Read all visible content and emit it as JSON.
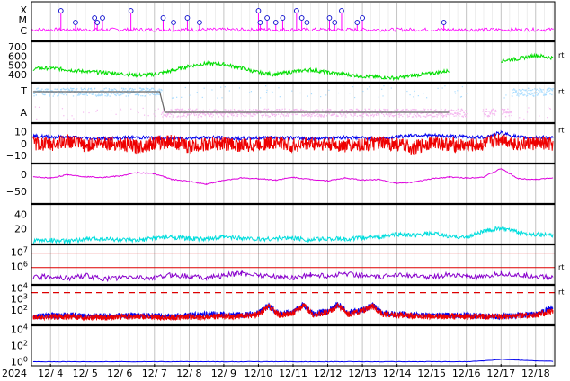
{
  "chart_data": {
    "type": "line",
    "x_axis": {
      "year_label": "2024",
      "ticks": [
        "12/ 4",
        "12/ 5",
        "12/ 6",
        "12/ 7",
        "12/ 8",
        "12/ 9",
        "12/10",
        "12/11",
        "12/12",
        "12/13",
        "12/14",
        "12/15",
        "12/16",
        "12/17",
        "12/18"
      ],
      "xlim": [
        3.45,
        18.55
      ]
    },
    "panels": [
      {
        "id": "xray-flares",
        "type": "scatter",
        "y_tick_labels": [
          "X",
          "M",
          "C"
        ],
        "colors": {
          "trace": "#ff00ff",
          "marker": "#0000cc"
        },
        "flare_days": [
          4.3,
          4.72,
          5.27,
          5.35,
          5.5,
          6.32,
          7.25,
          7.55,
          7.95,
          8.3,
          10.0,
          10.05,
          10.25,
          10.5,
          10.7,
          11.1,
          11.25,
          11.4,
          12.05,
          12.2,
          12.4,
          12.85,
          13.0,
          15.35
        ]
      },
      {
        "id": "solar-wind-speed",
        "type": "line",
        "y_tick_labels": [
          "700",
          "600",
          "500",
          "400"
        ],
        "ylim": [
          320,
          760
        ],
        "right_label": "rt",
        "colors": {
          "line": "#00dd00"
        },
        "x": [
          3.5,
          4.0,
          4.5,
          5.0,
          5.5,
          6.0,
          6.5,
          7.0,
          7.5,
          8.0,
          8.5,
          9.0,
          9.5,
          10.0,
          10.5,
          11.0,
          11.5,
          12.0,
          12.5,
          13.0,
          13.5,
          14.0,
          14.5,
          15.0,
          15.5,
          16.0,
          16.5,
          17.0,
          17.5,
          18.0,
          18.5
        ],
        "y": [
          470,
          480,
          460,
          440,
          430,
          420,
          400,
          410,
          450,
          500,
          530,
          520,
          480,
          430,
          410,
          440,
          460,
          430,
          410,
          390,
          380,
          370,
          400,
          420,
          450,
          null,
          null,
          560,
          580,
          620,
          590
        ]
      },
      {
        "id": "imf-direction",
        "type": "scatter",
        "y_tick_labels": [
          "T",
          "A"
        ],
        "right_label": "rt",
        "colors": {
          "toward": "#a8dcff",
          "away": "#f5b8f0",
          "boundary": "#666666"
        }
      },
      {
        "id": "bz-bt",
        "type": "line",
        "y_tick_labels": [
          "10",
          "0",
          "−10"
        ],
        "ylim": [
          -16,
          18
        ],
        "right_label": "rt",
        "series": [
          {
            "color": "#0000ee",
            "x": [
              3.5,
              4.5,
              5.5,
              6.5,
              7.5,
              8.5,
              9.5,
              10.5,
              11.5,
              12.5,
              13.5,
              14.5,
              15.5,
              16.5,
              17.0,
              17.5,
              18.0,
              18.5
            ],
            "y": [
              7,
              6,
              5,
              6,
              5,
              6,
              5,
              6,
              5,
              6,
              5,
              8,
              7,
              6,
              10,
              6,
              6,
              6
            ]
          },
          {
            "color": "#ee0000",
            "x": [
              3.5,
              4.0,
              4.5,
              5.0,
              5.5,
              6.0,
              6.5,
              7.0,
              7.5,
              8.0,
              8.5,
              9.0,
              9.5,
              10.0,
              10.5,
              11.0,
              11.5,
              12.0,
              12.5,
              13.0,
              13.5,
              14.0,
              14.5,
              15.0,
              15.5,
              16.0,
              16.5,
              17.0,
              17.5,
              18.0,
              18.5
            ],
            "y": [
              1,
              0,
              3,
              -1,
              2,
              0,
              -2,
              1,
              3,
              -2,
              0,
              1,
              -1,
              0,
              2,
              -1,
              1,
              0,
              -1,
              0,
              1,
              0,
              -3,
              2,
              0,
              -1,
              0,
              5,
              0,
              1,
              0
            ]
          }
        ]
      },
      {
        "id": "magnetometer-h",
        "type": "line",
        "y_tick_labels": [
          "0",
          "−50"
        ],
        "ylim": [
          -85,
          35
        ],
        "colors": {
          "line": "#dd00dd"
        },
        "x": [
          3.5,
          4.0,
          4.5,
          5.0,
          5.5,
          6.0,
          6.5,
          7.0,
          7.5,
          8.0,
          8.5,
          9.0,
          9.5,
          10.0,
          10.5,
          11.0,
          11.5,
          12.0,
          12.5,
          13.0,
          13.5,
          14.0,
          14.5,
          15.0,
          15.5,
          16.0,
          16.5,
          17.0,
          17.5,
          18.0,
          18.5
        ],
        "y": [
          -5,
          -8,
          2,
          -4,
          -6,
          -2,
          8,
          5,
          -12,
          -18,
          -26,
          -15,
          -8,
          -10,
          -14,
          -6,
          -12,
          -16,
          -8,
          -14,
          -12,
          -24,
          -20,
          -10,
          -5,
          -8,
          -5,
          20,
          -10,
          -12,
          -8
        ]
      },
      {
        "id": "electron-flux",
        "type": "line",
        "y_tick_labels": [
          "40",
          "20"
        ],
        "ylim": [
          0,
          55
        ],
        "colors": {
          "line": "#00dddd"
        },
        "x": [
          3.5,
          4.0,
          4.5,
          5.0,
          5.5,
          6.0,
          6.5,
          7.0,
          7.5,
          8.0,
          8.5,
          9.0,
          9.5,
          10.0,
          10.5,
          11.0,
          11.5,
          12.0,
          12.5,
          13.0,
          13.5,
          14.0,
          14.5,
          15.0,
          15.5,
          16.0,
          16.5,
          17.0,
          17.5,
          18.0,
          18.5
        ],
        "y": [
          5,
          6,
          4,
          7,
          8,
          6,
          5,
          9,
          10,
          8,
          7,
          10,
          9,
          7,
          8,
          9,
          6,
          8,
          7,
          9,
          10,
          14,
          12,
          15,
          11,
          10,
          18,
          22,
          16,
          14,
          12
        ]
      },
      {
        "id": "proton-flux",
        "type": "line",
        "log_scale": true,
        "y_tick_labels": [
          "10<sup>7</sup>",
          "10<sup>6</sup>"
        ],
        "ylim_log": [
          4.8,
          7.6
        ],
        "right_label": "rt",
        "colors": {
          "line": "#8800cc",
          "threshold": "#dd0000"
        },
        "thresholds_log": [
          7,
          6
        ],
        "x": [
          3.5,
          4.0,
          4.5,
          5.0,
          5.5,
          6.0,
          6.5,
          7.0,
          7.5,
          8.0,
          8.5,
          9.0,
          9.5,
          10.0,
          10.5,
          11.0,
          11.5,
          12.0,
          12.5,
          13.0,
          13.5,
          14.0,
          14.5,
          15.0,
          15.5,
          16.0,
          16.5,
          17.0,
          17.5,
          18.0,
          18.5
        ],
        "y": [
          5.3,
          5.4,
          5.25,
          5.45,
          5.2,
          5.3,
          5.35,
          5.25,
          5.5,
          5.4,
          5.3,
          5.45,
          5.6,
          5.5,
          5.35,
          5.3,
          5.5,
          5.4,
          5.6,
          5.45,
          5.3,
          5.55,
          5.4,
          5.35,
          5.5,
          5.4,
          5.3,
          5.6,
          5.45,
          5.4,
          5.3
        ]
      },
      {
        "id": "geomagnetic-index",
        "type": "line",
        "log_scale": true,
        "y_tick_labels": [
          "10<sup>4</sup>",
          "10<sup>3</sup>",
          "10<sup>2</sup>"
        ],
        "ylim_log": [
          0.7,
          4.35
        ],
        "right_label": "rt",
        "colors": {
          "threshold": "#dd0000"
        },
        "threshold_log": 3.65,
        "series": [
          {
            "color": "#0000ee",
            "x": [
              3.5,
              4.5,
              5.5,
              6.5,
              7.5,
              8.5,
              9.5,
              10.0,
              10.3,
              10.6,
              11.0,
              11.3,
              11.6,
              12.0,
              12.3,
              12.6,
              13.0,
              13.3,
              13.6,
              14.0,
              15.0,
              16.0,
              17.0,
              18.0,
              18.5
            ],
            "y": [
              1.5,
              1.6,
              1.5,
              1.6,
              1.5,
              1.7,
              1.6,
              1.8,
              2.5,
              1.7,
              1.9,
              2.6,
              1.7,
              2.0,
              2.6,
              1.8,
              2.1,
              2.5,
              1.8,
              1.7,
              1.6,
              1.6,
              1.5,
              1.7,
              2.3
            ]
          },
          {
            "color": "#ee0000",
            "x": [
              3.5,
              4.5,
              5.5,
              6.5,
              7.5,
              8.5,
              9.5,
              10.0,
              10.3,
              10.6,
              11.0,
              11.3,
              11.6,
              12.0,
              12.3,
              12.6,
              13.0,
              13.3,
              13.6,
              14.0,
              15.0,
              16.0,
              17.0,
              18.0,
              18.5
            ],
            "y": [
              1.4,
              1.5,
              1.4,
              1.5,
              1.4,
              1.5,
              1.5,
              1.7,
              2.4,
              1.6,
              1.8,
              2.5,
              1.6,
              1.9,
              2.5,
              1.7,
              2.0,
              2.4,
              1.7,
              1.6,
              1.5,
              1.5,
              1.5,
              1.6,
              2.0
            ]
          }
        ]
      },
      {
        "id": "bottom-flux",
        "type": "line",
        "log_scale": true,
        "y_tick_labels": [
          "10<sup>4</sup>",
          "10<sup>2</sup>",
          "10<sup>0</sup>"
        ],
        "ylim_log": [
          -0.4,
          4.6
        ],
        "colors": {
          "line": "#0000ee"
        },
        "x": [
          3.5,
          6.0,
          9.0,
          12.0,
          15.0,
          16.0,
          16.5,
          17.0,
          17.5,
          18.0,
          18.5
        ],
        "y": [
          0.1,
          0.1,
          0.1,
          0.1,
          0.1,
          0.1,
          0.2,
          0.4,
          0.3,
          0.2,
          0.15
        ]
      }
    ]
  }
}
